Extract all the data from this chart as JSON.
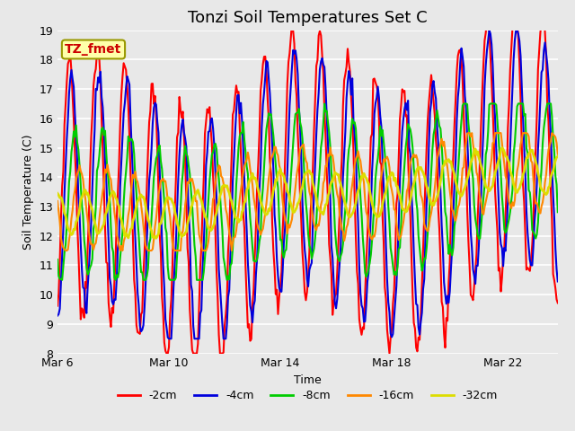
{
  "title": "Tonzi Soil Temperatures Set C",
  "xlabel": "Time",
  "ylabel": "Soil Temperature (C)",
  "ylim": [
    8.0,
    19.0
  ],
  "yticks": [
    8.0,
    9.0,
    10.0,
    11.0,
    12.0,
    13.0,
    14.0,
    15.0,
    16.0,
    17.0,
    18.0,
    19.0
  ],
  "xtick_labels": [
    "Mar 6",
    "Mar 10",
    "Mar 14",
    "Mar 18",
    "Mar 22"
  ],
  "xtick_positions": [
    0,
    96,
    192,
    288,
    384
  ],
  "legend_labels": [
    "-2cm",
    "-4cm",
    "-8cm",
    "-16cm",
    "-32cm"
  ],
  "legend_colors": [
    "#ff0000",
    "#0000dd",
    "#00cc00",
    "#ff8800",
    "#dddd00"
  ],
  "line_widths": [
    1.5,
    1.5,
    1.5,
    1.5,
    2.0
  ],
  "annotation_text": "TZ_fmet",
  "annotation_color": "#cc0000",
  "annotation_bg": "#ffffaa",
  "annotation_border": "#999900",
  "bg_color": "#e8e8e8",
  "plot_bg": "#e8e8e8",
  "grid_color": "#ffffff",
  "n_points": 432,
  "title_fontsize": 13,
  "label_fontsize": 9
}
